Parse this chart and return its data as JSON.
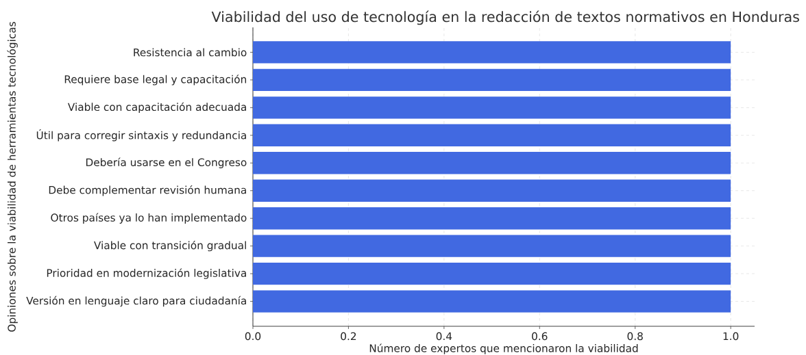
{
  "chart_data": {
    "type": "bar",
    "orientation": "horizontal",
    "title": "Viabilidad del uso de tecnología en la redacción de textos normativos en Honduras",
    "xlabel": "Número de expertos que mencionaron la viabilidad",
    "ylabel": "Opiniones sobre la viabilidad de herramientas tecnológicas",
    "categories": [
      "Resistencia al cambio",
      "Requiere base legal y capacitación",
      "Viable con capacitación adecuada",
      "Útil para corregir sintaxis y redundancia",
      "Debería usarse en el Congreso",
      "Debe complementar revisión humana",
      "Otros países ya lo han implementado",
      "Viable con transición gradual",
      "Prioridad en modernización legislativa",
      "Versión en lenguaje claro para ciudadanía"
    ],
    "values": [
      1,
      1,
      1,
      1,
      1,
      1,
      1,
      1,
      1,
      1
    ],
    "color": "#4169e1",
    "xlim": [
      0,
      1.05
    ],
    "xticks": [
      {
        "value": 0,
        "label": "0.0"
      },
      {
        "value": 0.2,
        "label": "0.2"
      },
      {
        "value": 0.4,
        "label": "0.4"
      },
      {
        "value": 0.6,
        "label": "0.6"
      },
      {
        "value": 0.8,
        "label": "0.8"
      },
      {
        "value": 1,
        "label": "1.0"
      }
    ],
    "grid": true
  }
}
